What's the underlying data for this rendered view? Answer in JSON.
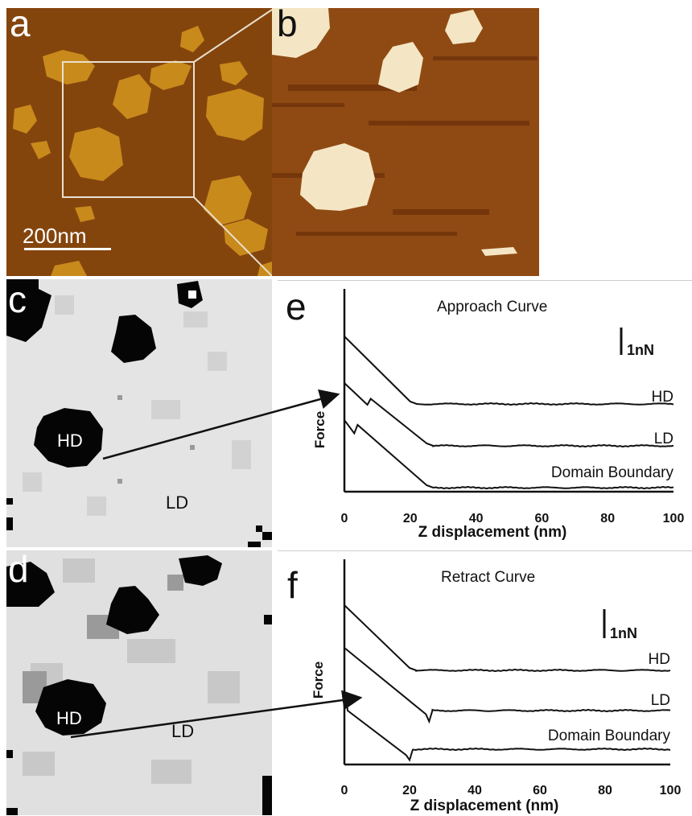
{
  "panels": {
    "a": {
      "letter": "a",
      "scale_bar": "200nm"
    },
    "b": {
      "letter": "b"
    },
    "c": {
      "letter": "c",
      "hd": "HD",
      "ld": "LD"
    },
    "d": {
      "letter": "d",
      "hd": "HD",
      "ld": "LD"
    }
  },
  "chart_data": [
    {
      "type": "line",
      "panel": "e",
      "title": "Approach Curve",
      "xlabel": "Z displacement (nm)",
      "ylabel": "Force",
      "scale_label": "1nN",
      "xlim": [
        0,
        100
      ],
      "x_ticks": [
        "0",
        "20",
        "40",
        "60",
        "80",
        "100"
      ],
      "series": [
        {
          "name": "HD",
          "x": [
            0,
            20,
            22,
            100
          ],
          "y_nN": [
            5.6,
            0.2,
            0,
            0
          ]
        },
        {
          "name": "LD",
          "x": [
            0,
            7,
            8,
            25,
            27,
            100
          ],
          "y_nN": [
            5.2,
            3.4,
            3.9,
            0.2,
            0,
            0
          ]
        },
        {
          "name": "Domain Boundary",
          "x": [
            0,
            3,
            4,
            25,
            27,
            100
          ],
          "y_nN": [
            5.6,
            4.5,
            5.2,
            0.2,
            0,
            0
          ]
        }
      ]
    },
    {
      "type": "line",
      "panel": "f",
      "title": "Retract Curve",
      "xlabel": "Z displacement (nm)",
      "ylabel": "Force",
      "scale_label": "1nN",
      "xlim": [
        0,
        100
      ],
      "x_ticks": [
        "0",
        "20",
        "40",
        "60",
        "80",
        "100"
      ],
      "series": [
        {
          "name": "HD",
          "x": [
            0,
            20,
            22,
            100
          ],
          "y_nN": [
            5.4,
            0.2,
            0,
            0
          ]
        },
        {
          "name": "LD",
          "x": [
            0,
            25,
            26,
            27,
            100
          ],
          "y_nN": [
            5.2,
            -0.3,
            -0.9,
            0,
            0
          ]
        },
        {
          "name": "Domain Boundary",
          "x": [
            0,
            0.5,
            1,
            19,
            20,
            21,
            100
          ],
          "y_nN": [
            4.8,
            4.6,
            3.2,
            -0.5,
            -0.9,
            0,
            0
          ]
        }
      ]
    }
  ]
}
